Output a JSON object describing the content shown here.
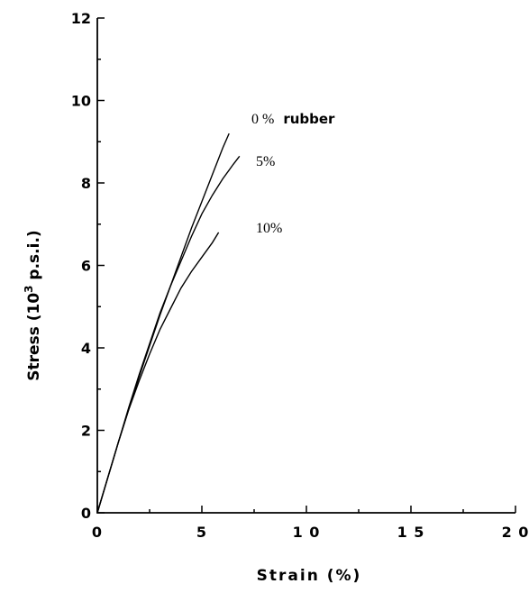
{
  "chart_data": {
    "type": "line",
    "title": "",
    "xlabel": "Strain (%)",
    "ylabel_main": "Stress (10",
    "ylabel_sup": "3",
    "ylabel_tail": " p.s.i.)",
    "xlim": [
      0,
      20
    ],
    "ylim": [
      0,
      12
    ],
    "x_ticks": [
      0,
      5,
      10,
      15,
      20
    ],
    "x_tick_labels": [
      "0",
      "5",
      "1 0",
      "1 5",
      "2 0"
    ],
    "y_ticks": [
      0,
      2,
      4,
      6,
      8,
      10,
      12
    ],
    "y_tick_labels": [
      "0",
      "2",
      "4",
      "6",
      "8",
      "10",
      "12"
    ],
    "grid": false,
    "series": [
      {
        "name": "0 % rubber",
        "label_main": "0 %",
        "label_suffix": "rubber",
        "x": [
          0,
          0.5,
          1,
          1.5,
          2,
          2.5,
          3,
          3.5,
          4,
          4.5,
          5,
          5.5,
          6,
          6.3
        ],
        "y": [
          0,
          0.85,
          1.7,
          2.5,
          3.3,
          4.05,
          4.8,
          5.5,
          6.2,
          6.9,
          7.55,
          8.2,
          8.85,
          9.2
        ]
      },
      {
        "name": "5%",
        "x": [
          0,
          0.5,
          1,
          1.5,
          2,
          2.5,
          3,
          3.5,
          4,
          4.5,
          5,
          5.5,
          6,
          6.5,
          6.8
        ],
        "y": [
          0,
          0.85,
          1.7,
          2.55,
          3.35,
          4.1,
          4.85,
          5.5,
          6.1,
          6.7,
          7.25,
          7.7,
          8.1,
          8.45,
          8.65
        ]
      },
      {
        "name": "10%",
        "x": [
          0,
          0.5,
          1,
          1.5,
          2,
          2.5,
          3,
          3.5,
          4,
          4.5,
          5,
          5.5,
          5.8
        ],
        "y": [
          0,
          0.85,
          1.7,
          2.5,
          3.2,
          3.85,
          4.45,
          4.95,
          5.45,
          5.85,
          6.2,
          6.55,
          6.8
        ]
      }
    ]
  }
}
